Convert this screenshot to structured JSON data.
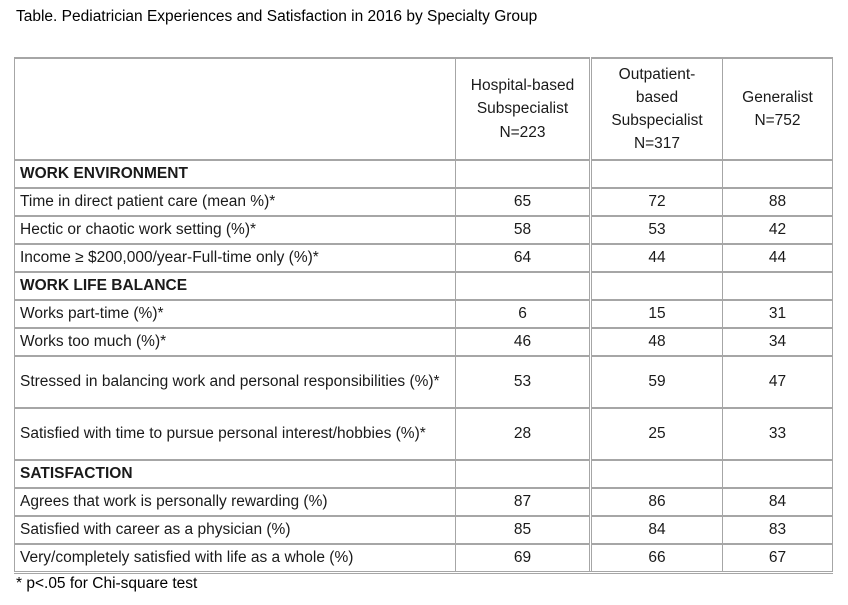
{
  "page": {
    "title": "Table. Pediatrician Experiences and Satisfaction in 2016 by Specialty Group",
    "footnote": "* p<.05 for Chi-square test"
  },
  "table": {
    "border_color": "#a6a6a6",
    "header": {
      "col0": "",
      "col1": "Hospital-based\nSubspecialist\nN=223",
      "col2": "Outpatient-\nbased\nSubspecialist\nN=317",
      "col3": "Generalist\nN=752"
    },
    "rows": [
      {
        "type": "section",
        "label": "WORK ENVIRONMENT",
        "values": [
          "",
          "",
          ""
        ]
      },
      {
        "type": "data",
        "label": "Time in direct patient care (mean %)*",
        "values": [
          "65",
          "72",
          "88"
        ]
      },
      {
        "type": "data",
        "label": "Hectic or chaotic work setting (%)*",
        "values": [
          "58",
          "53",
          "42"
        ]
      },
      {
        "type": "data",
        "label": "Income ≥ $200,000/year-Full-time only (%)*",
        "values": [
          "64",
          "44",
          "44"
        ]
      },
      {
        "type": "section",
        "label": "WORK LIFE BALANCE",
        "values": [
          "",
          "",
          ""
        ]
      },
      {
        "type": "data",
        "label": "Works part-time (%)*",
        "values": [
          "6",
          "15",
          "31"
        ]
      },
      {
        "type": "data",
        "label": "Works too much (%)*",
        "values": [
          "46",
          "48",
          "34"
        ]
      },
      {
        "type": "data",
        "label": "Stressed in balancing work and personal responsibilities (%)*",
        "values": [
          "53",
          "59",
          "47"
        ]
      },
      {
        "type": "data",
        "label": "Satisfied with time to pursue personal interest/hobbies (%)*",
        "values": [
          "28",
          "25",
          "33"
        ]
      },
      {
        "type": "section",
        "label": "SATISFACTION",
        "values": [
          "",
          "",
          ""
        ]
      },
      {
        "type": "data",
        "label": "Agrees that work is personally rewarding (%)",
        "values": [
          "87",
          "86",
          "84"
        ]
      },
      {
        "type": "data",
        "label": "Satisfied with career as a physician (%)",
        "values": [
          "85",
          "84",
          "83"
        ]
      },
      {
        "type": "data",
        "label": "Very/completely satisfied with life as a whole (%)",
        "values": [
          "69",
          "66",
          "67"
        ]
      }
    ]
  }
}
